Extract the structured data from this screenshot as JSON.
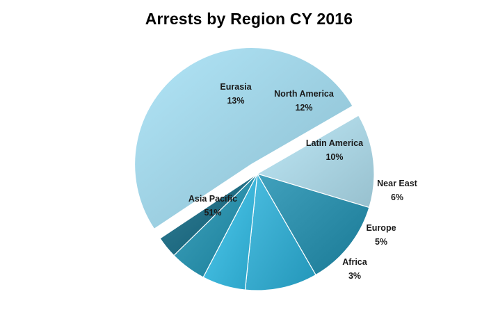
{
  "chart_data": {
    "type": "pie",
    "title": "Arrests by Region CY 2016",
    "slices": [
      {
        "name": "Asia Pacific",
        "value": 51,
        "label": "51%",
        "color": "#9ccfe1",
        "explode": true
      },
      {
        "name": "Eurasia",
        "value": 13,
        "label": "13%",
        "color": "#a9d2e0",
        "explode": false
      },
      {
        "name": "North America",
        "value": 12,
        "label": "12%",
        "color": "#2b8ba7",
        "explode": false
      },
      {
        "name": "Latin America",
        "value": 10,
        "label": "10%",
        "color": "#35a8cb",
        "explode": false
      },
      {
        "name": "Near East",
        "value": 6,
        "label": "6%",
        "color": "#3bb4d8",
        "explode": false
      },
      {
        "name": "Europe",
        "value": 5,
        "label": "5%",
        "color": "#2a8ea9",
        "explode": false
      },
      {
        "name": "Africa",
        "value": 3,
        "label": "3%",
        "color": "#1f6b82",
        "explode": false
      }
    ]
  }
}
